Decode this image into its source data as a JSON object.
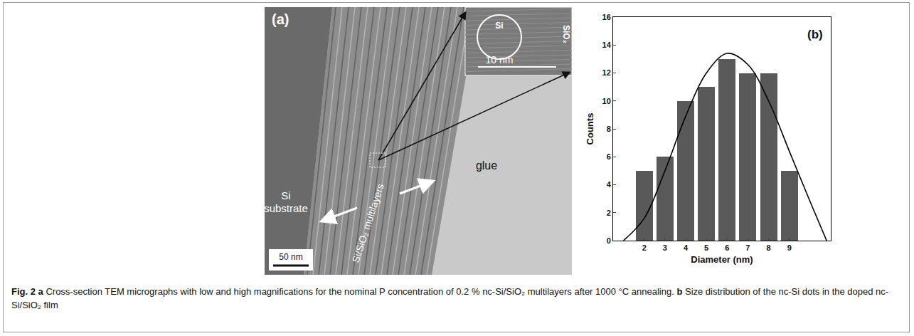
{
  "panel_a": {
    "label": "(a)",
    "substrate": "Si substrate",
    "multilayers": "Si/SiO₂ multilayers",
    "glue": "glue",
    "scale_bar": "50 nm",
    "inset": {
      "core": "Si",
      "matrix": "SiO₂",
      "scale_bar": "10 nm"
    }
  },
  "chart_data": {
    "type": "bar",
    "panel_label": "(b)",
    "xlabel": "Diameter (nm)",
    "ylabel": "Counts",
    "series": [
      {
        "type": "bar",
        "x": [
          2,
          3,
          4,
          5,
          6,
          7,
          8,
          9
        ],
        "values": [
          5,
          6,
          10,
          11,
          13,
          12,
          12,
          5
        ],
        "color": "#595959"
      },
      {
        "type": "line",
        "x": [
          1,
          2,
          3,
          4,
          5,
          6,
          7,
          8,
          9,
          10,
          10.8
        ],
        "values": [
          0,
          1.6,
          5,
          8.9,
          12,
          13.4,
          12.6,
          10,
          6.4,
          2.8,
          0
        ],
        "color": "#000000"
      }
    ],
    "xlim": [
      0.5,
      11
    ],
    "xticks": [
      2,
      3,
      4,
      5,
      6,
      7,
      8,
      9
    ],
    "ylim": [
      0,
      16
    ],
    "yticks": [
      0,
      2,
      4,
      6,
      8,
      10,
      12,
      14,
      16
    ],
    "grid": false
  },
  "caption": {
    "label": "Fig. 2",
    "parts": [
      {
        "letter": "a",
        "text": "Cross-section TEM micrographs with low and high magnifications for the nominal P concentration of 0.2 % nc-Si/SiO₂ multilayers after 1000 °C annealing."
      },
      {
        "letter": "b",
        "text": "Size distribution of the nc-Si dots in the doped nc-Si/SiO₂ film"
      }
    ]
  }
}
